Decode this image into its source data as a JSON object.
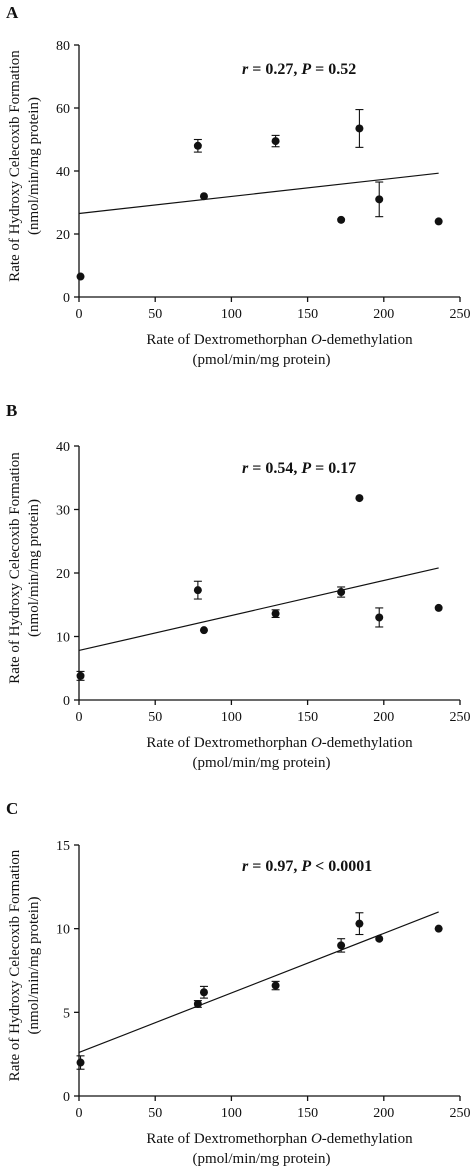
{
  "chart_data": [
    {
      "panel_label": "A",
      "type": "scatter",
      "x_tick_labels": [
        "0",
        "50",
        "100",
        "150",
        "200",
        "250"
      ],
      "y_tick_labels": [
        "0",
        "20",
        "40",
        "60",
        "80"
      ],
      "xlim": [
        0,
        250
      ],
      "ylim": [
        0,
        80
      ],
      "xlabel_line1": "Rate of Dextromethorphan ",
      "xlabel_italic": "O",
      "xlabel_line1_end": "-demethylation",
      "xlabel_line2": "(pmol/min/mg protein)",
      "ylabel_line1": "Rate of Hydroxy Celecoxib Formation",
      "ylabel_line2": "(nmol/min/mg protein)",
      "annotation": {
        "r_symbol": "r",
        "r_text": " = 0.27, ",
        "p_symbol": "P",
        "p_text": " = 0.52"
      },
      "points": [
        {
          "x": 1,
          "y": 6.5
        },
        {
          "x": 78,
          "y": 48,
          "err": 2
        },
        {
          "x": 82,
          "y": 32
        },
        {
          "x": 129,
          "y": 49.5,
          "err": 1.8
        },
        {
          "x": 172,
          "y": 24.5
        },
        {
          "x": 184,
          "y": 53.5,
          "err": 6
        },
        {
          "x": 197,
          "y": 31,
          "err": 5.5
        },
        {
          "x": 236,
          "y": 24
        }
      ],
      "fit_line": {
        "x": [
          0,
          236
        ],
        "y": [
          26.5,
          39.3
        ]
      }
    },
    {
      "panel_label": "B",
      "type": "scatter",
      "x_tick_labels": [
        "0",
        "50",
        "100",
        "150",
        "200",
        "250"
      ],
      "y_tick_labels": [
        "0",
        "10",
        "20",
        "30",
        "40"
      ],
      "xlim": [
        0,
        250
      ],
      "ylim": [
        0,
        40
      ],
      "xlabel_line1": "Rate of Dextromethorphan ",
      "xlabel_italic": "O",
      "xlabel_line1_end": "-demethylation",
      "xlabel_line2": "(pmol/min/mg protein)",
      "ylabel_line1": "Rate of Hydroxy Celecoxib Formation",
      "ylabel_line2": "(nmol/min/mg protein)",
      "annotation": {
        "r_symbol": "r",
        "r_text": " = 0.54, ",
        "p_symbol": "P",
        "p_text": " = 0.17"
      },
      "points": [
        {
          "x": 1,
          "y": 3.8,
          "err": 0.7
        },
        {
          "x": 78,
          "y": 17.3,
          "err": 1.4
        },
        {
          "x": 82,
          "y": 11
        },
        {
          "x": 129,
          "y": 13.6,
          "err": 0.6
        },
        {
          "x": 172,
          "y": 17,
          "err": 0.8
        },
        {
          "x": 184,
          "y": 31.8
        },
        {
          "x": 197,
          "y": 13,
          "err": 1.5
        },
        {
          "x": 236,
          "y": 14.5
        }
      ],
      "fit_line": {
        "x": [
          0,
          236
        ],
        "y": [
          7.8,
          20.8
        ]
      }
    },
    {
      "panel_label": "C",
      "type": "scatter",
      "x_tick_labels": [
        "0",
        "50",
        "100",
        "150",
        "200",
        "250"
      ],
      "y_tick_labels": [
        "0",
        "5",
        "10",
        "15"
      ],
      "xlim": [
        0,
        250
      ],
      "ylim": [
        0,
        15
      ],
      "xlabel_line1": "Rate of Dextromethorphan ",
      "xlabel_italic": "O",
      "xlabel_line1_end": "-demethylation",
      "xlabel_line2": "(pmol/min/mg protein)",
      "ylabel_line1": "Rate of Hydroxy Celecoxib Formation",
      "ylabel_line2": "(nmol/min/mg protein)",
      "annotation": {
        "r_symbol": "r",
        "r_text": " = 0.97, ",
        "p_symbol": "P",
        "p_text": " < 0.0001"
      },
      "points": [
        {
          "x": 1,
          "y": 2,
          "err": 0.4
        },
        {
          "x": 78,
          "y": 5.5,
          "err": 0.2
        },
        {
          "x": 82,
          "y": 6.2,
          "err": 0.35
        },
        {
          "x": 129,
          "y": 6.6,
          "err": 0.25
        },
        {
          "x": 172,
          "y": 9,
          "err": 0.4
        },
        {
          "x": 184,
          "y": 10.3,
          "err": 0.65
        },
        {
          "x": 197,
          "y": 9.4
        },
        {
          "x": 236,
          "y": 10
        }
      ],
      "fit_line": {
        "x": [
          0,
          236
        ],
        "y": [
          2.6,
          11
        ]
      }
    }
  ]
}
